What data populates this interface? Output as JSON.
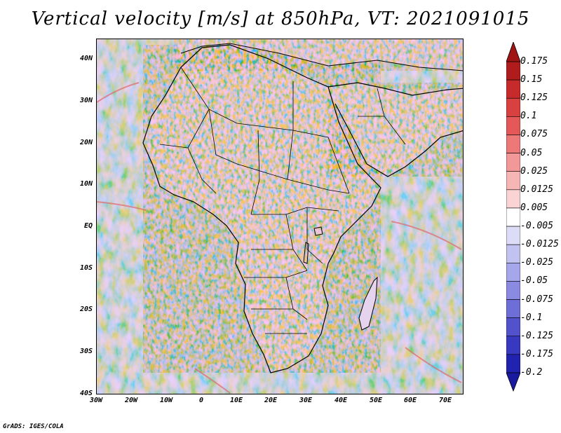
{
  "title": "Vertical velocity [m/s] at 850hPa, VT: 2021091015",
  "footer": "GrADS: IGES/COLA",
  "map": {
    "region": "Africa and Arabian Peninsula",
    "lon_range": [
      -30,
      75
    ],
    "lat_range": [
      -40,
      45
    ],
    "lat_labels": [
      "40N",
      "30N",
      "20N",
      "10N",
      "EQ",
      "10S",
      "20S",
      "30S",
      "40S"
    ],
    "lon_labels": [
      "30W",
      "20W",
      "10W",
      "0",
      "10E",
      "20E",
      "30E",
      "40E",
      "50E",
      "60E",
      "70E"
    ]
  },
  "colorbar": {
    "labels": [
      "0.175",
      "0.15",
      "0.125",
      "0.1",
      "0.075",
      "0.05",
      "0.025",
      "0.0125",
      "0.005",
      "-0.005",
      "-0.0125",
      "-0.025",
      "-0.05",
      "-0.075",
      "-0.1",
      "-0.125",
      "-0.175",
      "-0.2"
    ],
    "colors": [
      "#b01c1c",
      "#c62a2a",
      "#d94040",
      "#e45858",
      "#ec7878",
      "#f29898",
      "#f6b6b6",
      "#fad4d4",
      "#ffffff",
      "#dcdcf6",
      "#c2c2f0",
      "#a6a6ea",
      "#8a8ae2",
      "#6e6ed8",
      "#5252cc",
      "#3838c0",
      "#2222b0"
    ],
    "top_arrow_color": "#a01414",
    "bottom_arrow_color": "#1a1aa0"
  }
}
